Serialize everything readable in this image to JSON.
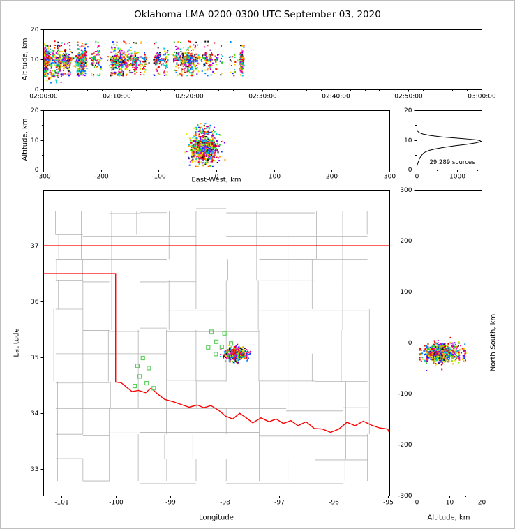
{
  "title": "Oklahoma LMA 0200-0300 UTC September 03, 2020",
  "seed": 20200903,
  "palette": [
    "#ff0000",
    "#e00000",
    "#ff4d00",
    "#ff9900",
    "#ffd400",
    "#e8e800",
    "#8ce800",
    "#22cc22",
    "#00d9a0",
    "#00cfe8",
    "#0088ff",
    "#0033ff",
    "#7a00ff",
    "#cc00cc",
    "#ff00aa",
    "#111111"
  ],
  "style": {
    "axis": "#000000",
    "county": "#b3b3b3",
    "state_border": "#ff0000",
    "station": "#5ecf5e",
    "curve": "#000000",
    "frame_border": "#bfbfbf"
  },
  "chart_data": [
    {
      "id": "altitude_vs_time",
      "type": "scatter",
      "xlabel": "",
      "ylabel": "Altitude, km",
      "xlim": [
        0,
        3600
      ],
      "ylim": [
        0,
        20
      ],
      "xticks": {
        "values": [
          0,
          600,
          1200,
          1800,
          2400,
          3000,
          3600
        ],
        "labels": [
          "02:00:00",
          "02:10:00",
          "02:20:00",
          "02:30:00",
          "02:40:00",
          "02:50:00",
          "03:00:00"
        ],
        "minor_step": 120
      },
      "yticks": {
        "values": [
          0,
          10,
          20
        ],
        "labels": [
          "0",
          "10",
          "20"
        ],
        "minor": [
          5,
          15
        ]
      },
      "points": {
        "description": "VHF lightning sources, active 02:00-02:27 UTC",
        "bursts_main": {
          "t_range": [
            0,
            1400
          ],
          "n_bursts": 55,
          "pts_per_burst": [
            10,
            65
          ],
          "early_bias": 1.35
        },
        "bursts_sparse": {
          "t_range": [
            1400,
            1580
          ],
          "n_bursts": 6,
          "pts_per_burst": [
            4,
            12
          ]
        },
        "burst_final": {
          "t": 1630,
          "pts": 130
        },
        "alt_dist": {
          "core_mean": 10.0,
          "core_sd": 1.2,
          "core_frac": 0.72,
          "mid_range": [
            4.5,
            8.5
          ],
          "mid_frac": 0.22,
          "high_range": [
            12.5,
            16.0
          ]
        },
        "low_cluster": {
          "t_range": [
            0,
            150
          ],
          "alt_mean": 4.5,
          "alt_sd": 0.9,
          "count": 55
        }
      }
    },
    {
      "id": "altitude_vs_east_west",
      "type": "scatter",
      "xlabel": "East-West, km",
      "ylabel": "Altitude, km",
      "xlim": [
        -300,
        300
      ],
      "ylim": [
        0,
        20
      ],
      "xticks": {
        "values": [
          -300,
          -200,
          -100,
          0,
          100,
          200,
          300
        ]
      },
      "yticks": {
        "values": [
          0,
          10,
          20
        ],
        "labels": [
          "0",
          "10",
          "20"
        ],
        "minor": [
          5,
          15
        ]
      },
      "cluster": {
        "x_mean": -21,
        "x_sd": 11,
        "x_clip": [
          -70,
          15
        ],
        "alt_mean": 7.0,
        "alt_sd": 2.4,
        "alt_clip": [
          1.0,
          13.0
        ],
        "high_frac": 0.07,
        "high_alt": [
          11,
          15.5
        ],
        "count": 900
      }
    },
    {
      "id": "source_density_profile",
      "type": "line",
      "xlabel": "",
      "ylabel": "",
      "xlim": [
        0,
        1600
      ],
      "ylim": [
        0,
        20
      ],
      "xticks": {
        "values": [
          0,
          1000
        ],
        "labels": [
          "0",
          "1000"
        ],
        "minor": [
          500,
          1500
        ]
      },
      "yticks": {
        "values": [
          0,
          10,
          20
        ],
        "labels": [
          "0",
          "10",
          "20"
        ],
        "minor": [
          5,
          15
        ]
      },
      "annotation": "29,289 sources",
      "profile_alt_km": [
        0,
        1,
        2,
        2.5,
        3,
        3.5,
        4,
        4.5,
        5,
        5.5,
        6,
        6.5,
        7,
        7.5,
        8,
        8.5,
        9,
        9.25,
        9.5,
        9.75,
        10,
        10.25,
        10.5,
        11,
        11.5,
        12,
        12.5,
        13,
        13.5,
        14,
        15,
        20
      ],
      "profile_counts": [
        0,
        5,
        25,
        40,
        55,
        65,
        85,
        105,
        135,
        165,
        225,
        320,
        470,
        680,
        930,
        1230,
        1460,
        1540,
        1590,
        1560,
        1480,
        1300,
        1080,
        620,
        330,
        150,
        60,
        22,
        8,
        2,
        0,
        0
      ]
    },
    {
      "id": "map_plan_view",
      "type": "scatter",
      "xlabel": "Longitude",
      "ylabel": "Latitude",
      "xlim": [
        -101.33,
        -94.97
      ],
      "ylim": [
        32.53,
        38.0
      ],
      "xticks": {
        "values": [
          -101,
          -100,
          -99,
          -98,
          -97,
          -96,
          -95
        ],
        "labels": [
          "-101",
          "-100",
          "-99",
          "-98",
          "-97",
          "-96",
          "-95"
        ]
      },
      "yticks": {
        "values": [
          33,
          34,
          35,
          36,
          37
        ],
        "labels": [
          "33",
          "34",
          "35",
          "36",
          "37"
        ]
      },
      "state_border": {
        "kansas_lat": 37.0,
        "polyline": [
          [
            -101.33,
            36.5
          ],
          [
            -100.0,
            36.5
          ],
          [
            -100.0,
            34.56
          ],
          [
            -99.9,
            34.55
          ],
          [
            -99.8,
            34.47
          ],
          [
            -99.7,
            34.39
          ],
          [
            -99.58,
            34.41
          ],
          [
            -99.45,
            34.37
          ],
          [
            -99.35,
            34.45
          ],
          [
            -99.22,
            34.34
          ],
          [
            -99.1,
            34.25
          ],
          [
            -98.95,
            34.21
          ],
          [
            -98.8,
            34.16
          ],
          [
            -98.65,
            34.11
          ],
          [
            -98.5,
            34.15
          ],
          [
            -98.38,
            34.1
          ],
          [
            -98.25,
            34.14
          ],
          [
            -98.1,
            34.05
          ],
          [
            -97.98,
            33.95
          ],
          [
            -97.85,
            33.9
          ],
          [
            -97.72,
            34.0
          ],
          [
            -97.6,
            33.92
          ],
          [
            -97.48,
            33.83
          ],
          [
            -97.33,
            33.92
          ],
          [
            -97.18,
            33.85
          ],
          [
            -97.05,
            33.9
          ],
          [
            -96.92,
            33.82
          ],
          [
            -96.78,
            33.87
          ],
          [
            -96.65,
            33.78
          ],
          [
            -96.5,
            33.85
          ],
          [
            -96.35,
            33.73
          ],
          [
            -96.2,
            33.72
          ],
          [
            -96.05,
            33.66
          ],
          [
            -95.9,
            33.72
          ],
          [
            -95.75,
            33.84
          ],
          [
            -95.6,
            33.78
          ],
          [
            -95.45,
            33.86
          ],
          [
            -95.3,
            33.79
          ],
          [
            -95.15,
            33.74
          ],
          [
            -95.0,
            33.72
          ],
          [
            -94.97,
            33.65
          ]
        ]
      },
      "stations": [
        [
          -98.24,
          35.46
        ],
        [
          -98.0,
          35.43
        ],
        [
          -98.15,
          35.28
        ],
        [
          -97.88,
          35.25
        ],
        [
          -98.3,
          35.18
        ],
        [
          -98.05,
          35.19
        ],
        [
          -98.16,
          35.06
        ],
        [
          -99.5,
          34.99
        ],
        [
          -99.6,
          34.85
        ],
        [
          -99.39,
          34.81
        ],
        [
          -99.56,
          34.66
        ],
        [
          -99.43,
          34.54
        ],
        [
          -99.65,
          34.49
        ],
        [
          -99.3,
          34.45
        ]
      ],
      "cluster": {
        "lon_mean": -97.78,
        "lon_sd": 0.1,
        "lat_mean": 35.06,
        "lat_sd": 0.055,
        "count": 520
      },
      "county_grid": {
        "col_step": [
          0.42,
          0.62
        ],
        "row_step": [
          0.36,
          0.52
        ],
        "skip_prob": 0.12
      }
    },
    {
      "id": "north_south_vs_altitude",
      "type": "scatter",
      "xlabel": "Altitude, km",
      "ylabel": "North-South, km",
      "xlim": [
        0,
        20
      ],
      "ylim": [
        -300,
        300
      ],
      "xticks": {
        "values": [
          0,
          10,
          20
        ],
        "labels": [
          "0",
          "10",
          "20"
        ],
        "minor": [
          5,
          15
        ]
      },
      "yticks": {
        "values": [
          300,
          200,
          100,
          0,
          -100,
          -200,
          -300
        ],
        "labels": [
          "300",
          "200",
          "100",
          "0",
          "-100",
          "-200",
          "-300"
        ]
      },
      "cluster": {
        "y_mean": -20,
        "y_sd": 9,
        "y_clip": [
          -55,
          12
        ],
        "alt_mean": 7.0,
        "alt_sd": 2.4,
        "alt_clip": [
          1.0,
          13.0
        ],
        "high_frac": 0.07,
        "high_alt": [
          11,
          15.5
        ],
        "count": 900
      }
    }
  ]
}
